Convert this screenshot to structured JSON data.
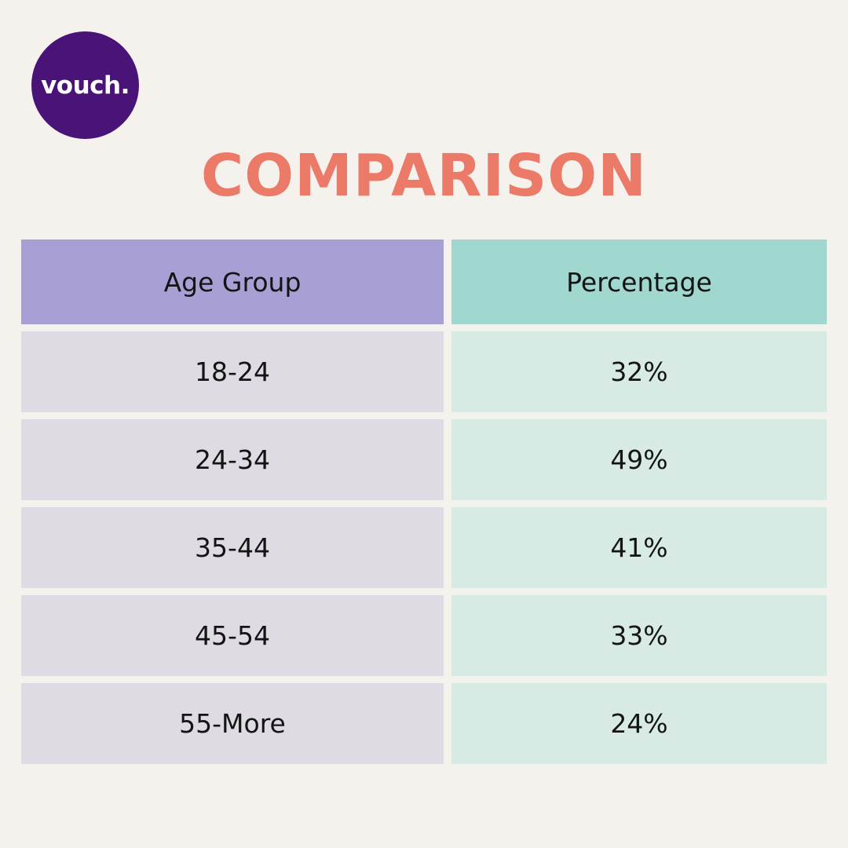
{
  "brand": {
    "logo_text": "vouch.",
    "logo_color": "#4a1378"
  },
  "title": "COMPARISON",
  "colors": {
    "title": "#ec7a68",
    "background": "#f5f2ed",
    "header_age": "#a89fd5",
    "header_pct": "#a0d7cf",
    "cell_age": "#dedbe3",
    "cell_pct": "#d7ebe4"
  },
  "table": {
    "headers": [
      "Age Group",
      "Percentage"
    ],
    "rows": [
      [
        "18-24",
        "32%"
      ],
      [
        "24-34",
        "49%"
      ],
      [
        "35-44",
        "41%"
      ],
      [
        "45-54",
        "33%"
      ],
      [
        "55-More",
        "24%"
      ]
    ]
  },
  "chart_data": {
    "type": "table",
    "title": "COMPARISON",
    "columns": [
      "Age Group",
      "Percentage"
    ],
    "categories": [
      "18-24",
      "24-34",
      "35-44",
      "45-54",
      "55-More"
    ],
    "values": [
      32,
      49,
      41,
      33,
      24
    ],
    "unit": "%"
  }
}
